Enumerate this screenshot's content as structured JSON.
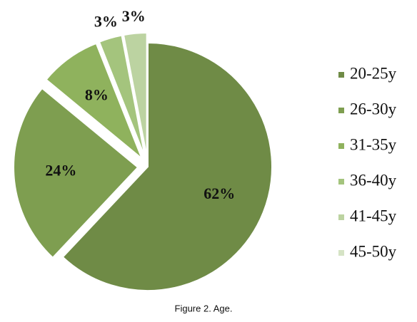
{
  "chart_data": {
    "type": "pie",
    "title": "Figure 2. Age.",
    "categories": [
      "20-25y",
      "26-30y",
      "31-35y",
      "36-40y",
      "41-45y",
      "45-50y"
    ],
    "values": [
      62,
      24,
      8,
      3,
      3,
      0
    ],
    "value_labels": [
      "62%",
      "24%",
      "8%",
      "3%",
      "3%",
      null
    ],
    "colors": [
      "#6f8b46",
      "#7e9e50",
      "#8fb25d",
      "#a4c47d",
      "#bcd3a1",
      "#d5e3c5"
    ],
    "legend": "right"
  }
}
